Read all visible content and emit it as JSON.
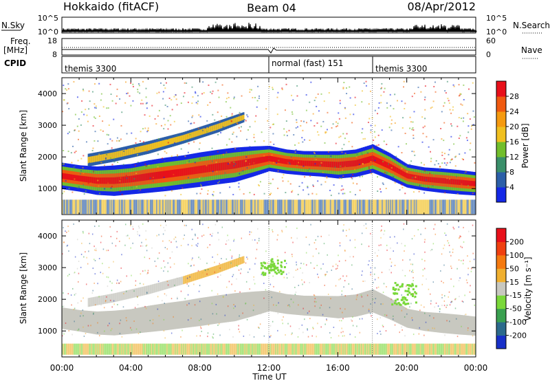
{
  "header": {
    "title": "Hokkaido (fitACF)",
    "beam": "Beam 04",
    "date": "08/Apr/2012"
  },
  "noise_panel": {
    "left_label": "N.Sky",
    "right_label": "N.Search",
    "left_ticks": [
      "10^5",
      "10^0"
    ],
    "right_ticks": [
      "10^5",
      "10^0"
    ]
  },
  "freq_panel": {
    "left_label_1": "Freq.",
    "left_label_2": "[MHz]",
    "left_ticks": [
      "18",
      "8"
    ],
    "right_label": "Nave",
    "right_ticks": [
      "60",
      "0"
    ]
  },
  "cpid_panel": {
    "label": "CPID",
    "segments": [
      {
        "label": "themis 3300",
        "start_hour": 0,
        "end_hour": 12
      },
      {
        "label": "normal (fast) 151",
        "start_hour": 12,
        "end_hour": 18
      },
      {
        "label": "themis 3300",
        "start_hour": 18,
        "end_hour": 24
      }
    ]
  },
  "x_axis": {
    "label": "Time UT",
    "tick_labels": [
      "00:00",
      "04:00",
      "08:00",
      "12:00",
      "16:00",
      "20:00",
      "00:00"
    ],
    "range_hours": [
      0,
      24
    ]
  },
  "power_panel": {
    "ylabel": "Slant Range [km]",
    "ytick_labels": [
      "1000",
      "2000",
      "3000",
      "4000"
    ],
    "colorbar_label": "Power [dB]",
    "colorbar_ticks": [
      "4",
      "8",
      "12",
      "16",
      "20",
      "24",
      "28"
    ],
    "colorbar_colors": [
      "#1428e6",
      "#2c5fa8",
      "#3a8f6a",
      "#72be2c",
      "#f0c020",
      "#f59a10",
      "#f05a10",
      "#e8101a"
    ]
  },
  "velocity_panel": {
    "ylabel": "Slant Range [km]",
    "ytick_labels": [
      "1000",
      "2000",
      "3000",
      "4000"
    ],
    "colorbar_label": "Velocity [m s⁻¹]",
    "colorbar_ticks": [
      "200",
      "100",
      "50",
      "15",
      "-15",
      "-50",
      "-100",
      "-200"
    ],
    "colorbar_colors": [
      "#1830c8",
      "#2c6a8c",
      "#3aa050",
      "#7ad83a",
      "#c8c8c0",
      "#f0b030",
      "#f57a10",
      "#f04010",
      "#e8101a"
    ]
  },
  "chart_data": {
    "type": "heatmap",
    "title": "Hokkaido (fitACF)",
    "xlabel": "Time UT",
    "ylabel": "Slant Range [km]",
    "xlim_hours": [
      0,
      24
    ],
    "ylim_km": [
      180,
      4500
    ],
    "main_echo_band": {
      "time_hours": [
        0,
        1,
        2,
        3,
        4,
        5,
        6,
        7,
        8,
        9,
        10,
        11,
        12,
        13,
        14,
        15,
        16,
        17,
        18,
        19,
        20,
        21,
        22,
        23,
        24
      ],
      "center_km": [
        1400,
        1320,
        1250,
        1250,
        1300,
        1380,
        1450,
        1520,
        1600,
        1680,
        1750,
        1850,
        1950,
        1850,
        1800,
        1780,
        1750,
        1800,
        1950,
        1700,
        1400,
        1300,
        1250,
        1200,
        1150
      ],
      "halfwidth_km": [
        260,
        260,
        280,
        300,
        300,
        320,
        330,
        330,
        340,
        340,
        340,
        300,
        250,
        240,
        240,
        250,
        270,
        270,
        280,
        260,
        230,
        230,
        240,
        240,
        230
      ]
    },
    "outer_echo_band": {
      "time_hours": [
        1.5,
        3,
        5,
        7,
        9,
        10.5
      ],
      "center_km": [
        1900,
        2050,
        2300,
        2600,
        2950,
        3250
      ],
      "halfwidth_km": [
        200,
        200,
        200,
        180,
        180,
        160
      ]
    },
    "power_range_db": [
      0,
      30
    ],
    "velocity_range_mps": [
      -200,
      200
    ]
  }
}
